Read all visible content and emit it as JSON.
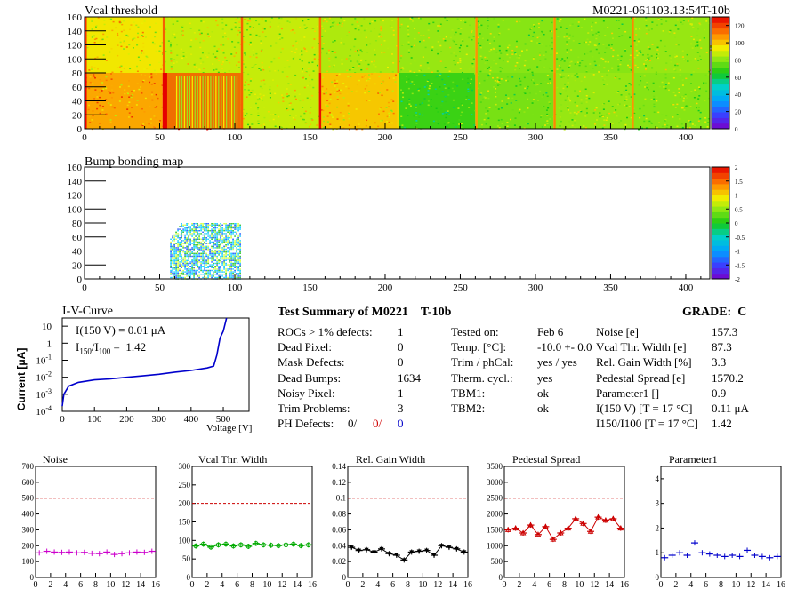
{
  "header": {
    "map_title": "Vcal threshold",
    "module_id": "M0221-061103.13:54T-10b"
  },
  "bump_title": "Bump bonding map",
  "map_x_ticks": [
    "0",
    "50",
    "100",
    "150",
    "200",
    "250",
    "300",
    "350",
    "400"
  ],
  "map_y_ticks": [
    "0",
    "20",
    "40",
    "60",
    "80",
    "100",
    "120",
    "140",
    "160"
  ],
  "vcal_palette_ticks": [
    "0",
    "20",
    "40",
    "60",
    "80",
    "100",
    "120"
  ],
  "bump_palette_ticks": [
    "-2",
    "-1.5",
    "-1",
    "-0.5",
    "0",
    "0.5",
    "1",
    "1.5",
    "2"
  ],
  "iv": {
    "title": "I-V-Curve",
    "ylabel": "Current [μA]",
    "xlabel": "Voltage [V]",
    "annot1_prefix": "I(150 V) = 0.01",
    "annot1_unit": "μA",
    "annot2_value": "1.42",
    "x_ticks": [
      "0",
      "100",
      "200",
      "300",
      "400",
      "500"
    ],
    "y_ticks": [
      {
        "base": "10",
        "exp": "",
        "v": 10
      },
      {
        "base": "1",
        "exp": "",
        "v": 1
      },
      {
        "base": "10",
        "exp": "-1",
        "v": 0.1
      },
      {
        "base": "10",
        "exp": "-2",
        "v": 0.01
      },
      {
        "base": "10",
        "exp": "-3",
        "v": 0.001
      },
      {
        "base": "10",
        "exp": "-4",
        "v": 0.0001
      }
    ]
  },
  "summary": {
    "title": "Test Summary of M0221",
    "tag": "T-10b",
    "grade_label": "GRADE:",
    "grade": "C",
    "col1": [
      {
        "label": "ROCs > 1% defects:",
        "value": "1"
      },
      {
        "label": "Dead Pixel:",
        "value": "0"
      },
      {
        "label": "Mask Defects:",
        "value": "0"
      },
      {
        "label": "Dead Bumps:",
        "value": "1634"
      },
      {
        "label": "Noisy Pixel:",
        "value": "1"
      },
      {
        "label": "Trim Problems:",
        "value": "3"
      }
    ],
    "ph_label": "PH Defects:",
    "ph_values": [
      "0/",
      "0/",
      "0"
    ],
    "col2": [
      {
        "label": "Tested on:",
        "value": "Feb 6"
      },
      {
        "label": "Temp. [°C]:",
        "value": "-10.0 +- 0.0"
      },
      {
        "label": "Trim / phCal:",
        "value": "yes / yes"
      },
      {
        "label": "Therm. cycl.:",
        "value": "yes"
      },
      {
        "label": "TBM1:",
        "value": "ok"
      },
      {
        "label": "TBM2:",
        "value": "ok"
      }
    ],
    "col3": [
      {
        "label": "Noise [e]",
        "value": "157.3"
      },
      {
        "label": "Vcal Thr. Width [e]",
        "value": "87.3"
      },
      {
        "label": "Rel. Gain Width [%]",
        "value": "3.3"
      },
      {
        "label": "Pedestal Spread [e]",
        "value": "1570.2"
      },
      {
        "label": "Parameter1 []",
        "value": "0.9"
      },
      {
        "label": "I(150 V) [T = 17 °C]",
        "value": "0.11 μA"
      },
      {
        "label": "I150/I100  [T = 17 °C]",
        "value": "1.42"
      }
    ]
  },
  "chart_data": [
    {
      "type": "heatmap",
      "title": "Vcal threshold",
      "xlim": [
        0,
        416
      ],
      "ylim": [
        0,
        160
      ],
      "zlim": [
        0,
        130
      ],
      "roc_mean_values": {
        "top_row": [
          95,
          88,
          88,
          85,
          82,
          80,
          80,
          82
        ],
        "bottom_row": [
          105,
          130,
          88,
          100,
          70,
          78,
          82,
          80
        ]
      }
    },
    {
      "type": "heatmap",
      "title": "Bump bonding map",
      "xlim": [
        0,
        416
      ],
      "ylim": [
        0,
        160
      ],
      "zlim": [
        -2,
        2
      ],
      "dead_region": {
        "x": [
          57,
          104
        ],
        "y": [
          0,
          80
        ]
      }
    },
    {
      "type": "line",
      "title": "I-V-Curve",
      "xlabel": "Voltage [V]",
      "ylabel": "Current [μA]",
      "log_y": true,
      "xlim": [
        0,
        580
      ],
      "ylim": [
        0.0001,
        30
      ],
      "x": [
        0,
        5,
        20,
        50,
        100,
        150,
        200,
        250,
        300,
        350,
        400,
        450,
        470,
        480,
        490,
        500,
        510
      ],
      "y": [
        0.0002,
        0.001,
        0.003,
        0.005,
        0.007,
        0.008,
        0.01,
        0.012,
        0.015,
        0.02,
        0.025,
        0.035,
        0.045,
        0.2,
        2,
        5,
        30
      ]
    },
    {
      "type": "scatter",
      "title": "Noise",
      "xlim": [
        0,
        16
      ],
      "ylim": [
        0,
        700
      ],
      "y_ticks": [
        0,
        100,
        200,
        300,
        400,
        500,
        600,
        700
      ],
      "limit": 500,
      "color": "#cc00cc",
      "x": [
        0,
        1,
        2,
        3,
        4,
        5,
        6,
        7,
        8,
        9,
        10,
        11,
        12,
        13,
        14,
        15
      ],
      "y": [
        155,
        165,
        160,
        158,
        160,
        155,
        158,
        152,
        150,
        160,
        145,
        150,
        155,
        160,
        158,
        165
      ]
    },
    {
      "type": "line",
      "title": "Vcal Thr. Width",
      "xlim": [
        0,
        16
      ],
      "ylim": [
        0,
        300
      ],
      "y_ticks": [
        0,
        50,
        100,
        150,
        200,
        250,
        300
      ],
      "limit": 200,
      "color": "#00aa00",
      "x": [
        0,
        1,
        2,
        3,
        4,
        5,
        6,
        7,
        8,
        9,
        10,
        11,
        12,
        13,
        14,
        15
      ],
      "y": [
        85,
        90,
        82,
        88,
        90,
        85,
        88,
        84,
        92,
        88,
        87,
        86,
        88,
        90,
        86,
        88
      ]
    },
    {
      "type": "line",
      "title": "Rel. Gain Width",
      "xlim": [
        0,
        16
      ],
      "ylim": [
        0,
        0.14
      ],
      "y_ticks": [
        0,
        0.02,
        0.04,
        0.06,
        0.08,
        0.1,
        0.12,
        0.14
      ],
      "limit": 0.1,
      "color": "#000000",
      "x": [
        0,
        1,
        2,
        3,
        4,
        5,
        6,
        7,
        8,
        9,
        10,
        11,
        12,
        13,
        14,
        15
      ],
      "y": [
        0.038,
        0.034,
        0.035,
        0.032,
        0.036,
        0.03,
        0.028,
        0.022,
        0.032,
        0.033,
        0.034,
        0.028,
        0.04,
        0.038,
        0.036,
        0.032
      ]
    },
    {
      "type": "line",
      "title": "Pedestal Spread",
      "xlim": [
        0,
        16
      ],
      "ylim": [
        0,
        3500
      ],
      "y_ticks": [
        0,
        500,
        1000,
        1500,
        2000,
        2500,
        3000,
        3500
      ],
      "limit": 2500,
      "color": "#cc0000",
      "x": [
        0,
        1,
        2,
        3,
        4,
        5,
        6,
        7,
        8,
        9,
        10,
        11,
        12,
        13,
        14,
        15
      ],
      "y": [
        1500,
        1550,
        1400,
        1650,
        1350,
        1600,
        1200,
        1400,
        1550,
        1850,
        1700,
        1450,
        1900,
        1800,
        1850,
        1550
      ]
    },
    {
      "type": "scatter",
      "title": "Parameter1",
      "xlim": [
        0,
        16
      ],
      "ylim": [
        0,
        4.5
      ],
      "y_ticks": [
        0,
        1,
        2,
        3,
        4
      ],
      "color": "#0000cc",
      "x": [
        0,
        1,
        2,
        3,
        4,
        5,
        6,
        7,
        8,
        9,
        10,
        11,
        12,
        13,
        14,
        15
      ],
      "y": [
        0.8,
        0.9,
        1.0,
        0.9,
        1.4,
        1.0,
        0.95,
        0.9,
        0.85,
        0.9,
        0.85,
        1.1,
        0.9,
        0.85,
        0.8,
        0.85
      ]
    }
  ]
}
